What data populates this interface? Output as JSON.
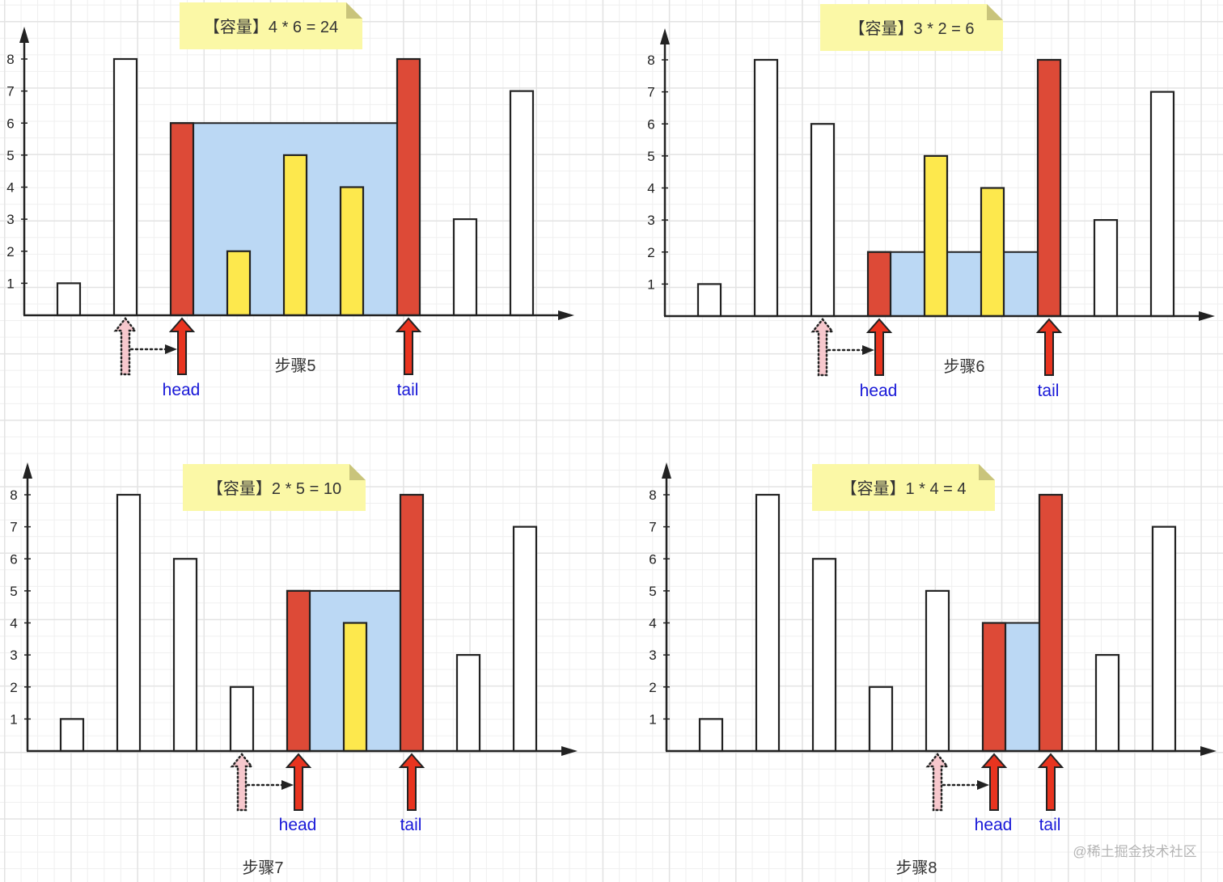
{
  "watermark": "@稀土掘金技术社区",
  "colors": {
    "axis": "#222222",
    "bar_empty": "#ffffff",
    "bar_pointer": "#dd4a37",
    "bar_inside": "#fde84d",
    "water": "#bbd8f4",
    "arrow": "#e8341f",
    "previous_arrow": "#f7c8cd",
    "pointer_label": "#1818d8",
    "note": "#fbf8a6",
    "note_fold": "#c9c47b",
    "text": "#333333",
    "watermark": "#b4b4b4"
  },
  "chart_data": [
    {
      "type": "bar",
      "title": "【容量】4 * 6 = 24",
      "step_label": "步骤5",
      "values": [
        1,
        8,
        6,
        2,
        5,
        4,
        8,
        3,
        7
      ],
      "bar_roles": [
        "empty",
        "empty",
        "pointer",
        "inside",
        "inside",
        "inside",
        "pointer",
        "empty",
        "empty"
      ],
      "y_ticks": [
        "1",
        "2",
        "3",
        "4",
        "5",
        "6",
        "7",
        "8"
      ],
      "ylim": [
        0,
        8
      ],
      "xlabel": "",
      "ylabel": "",
      "grid": true,
      "head_index": 2,
      "tail_index": 6,
      "previous_head_index": 1,
      "water_level": 6,
      "capacity": {
        "width": 4,
        "height": 6,
        "value": 24
      },
      "head_label": "head",
      "tail_label": "tail"
    },
    {
      "type": "bar",
      "title": "【容量】3 * 2 = 6",
      "step_label": "步骤6",
      "values": [
        1,
        8,
        6,
        2,
        5,
        4,
        8,
        3,
        7
      ],
      "bar_roles": [
        "empty",
        "empty",
        "empty",
        "pointer",
        "inside",
        "inside",
        "pointer",
        "empty",
        "empty"
      ],
      "y_ticks": [
        "1",
        "2",
        "3",
        "4",
        "5",
        "6",
        "7",
        "8"
      ],
      "ylim": [
        0,
        8
      ],
      "xlabel": "",
      "ylabel": "",
      "grid": true,
      "head_index": 3,
      "tail_index": 6,
      "previous_head_index": 2,
      "water_level": 2,
      "capacity": {
        "width": 3,
        "height": 2,
        "value": 6
      },
      "head_label": "head",
      "tail_label": "tail"
    },
    {
      "type": "bar",
      "title": "【容量】2 * 5 = 10",
      "step_label": "步骤7",
      "values": [
        1,
        8,
        6,
        2,
        5,
        4,
        8,
        3,
        7
      ],
      "bar_roles": [
        "empty",
        "empty",
        "empty",
        "empty",
        "pointer",
        "inside",
        "pointer",
        "empty",
        "empty"
      ],
      "y_ticks": [
        "1",
        "2",
        "3",
        "4",
        "5",
        "6",
        "7",
        "8"
      ],
      "ylim": [
        0,
        8
      ],
      "xlabel": "",
      "ylabel": "",
      "grid": true,
      "head_index": 4,
      "tail_index": 6,
      "previous_head_index": 3,
      "water_level": 5,
      "capacity": {
        "width": 2,
        "height": 5,
        "value": 10
      },
      "head_label": "head",
      "tail_label": "tail"
    },
    {
      "type": "bar",
      "title": "【容量】1 * 4 = 4",
      "step_label": "步骤8",
      "values": [
        1,
        8,
        6,
        2,
        5,
        4,
        8,
        3,
        7
      ],
      "bar_roles": [
        "empty",
        "empty",
        "empty",
        "empty",
        "empty",
        "pointer",
        "pointer",
        "empty",
        "empty"
      ],
      "y_ticks": [
        "1",
        "2",
        "3",
        "4",
        "5",
        "6",
        "7",
        "8"
      ],
      "ylim": [
        0,
        8
      ],
      "xlabel": "",
      "ylabel": "",
      "grid": true,
      "head_index": 5,
      "tail_index": 6,
      "previous_head_index": 4,
      "water_level": 4,
      "capacity": {
        "width": 1,
        "height": 4,
        "value": 4
      },
      "head_label": "head",
      "tail_label": "tail"
    }
  ]
}
